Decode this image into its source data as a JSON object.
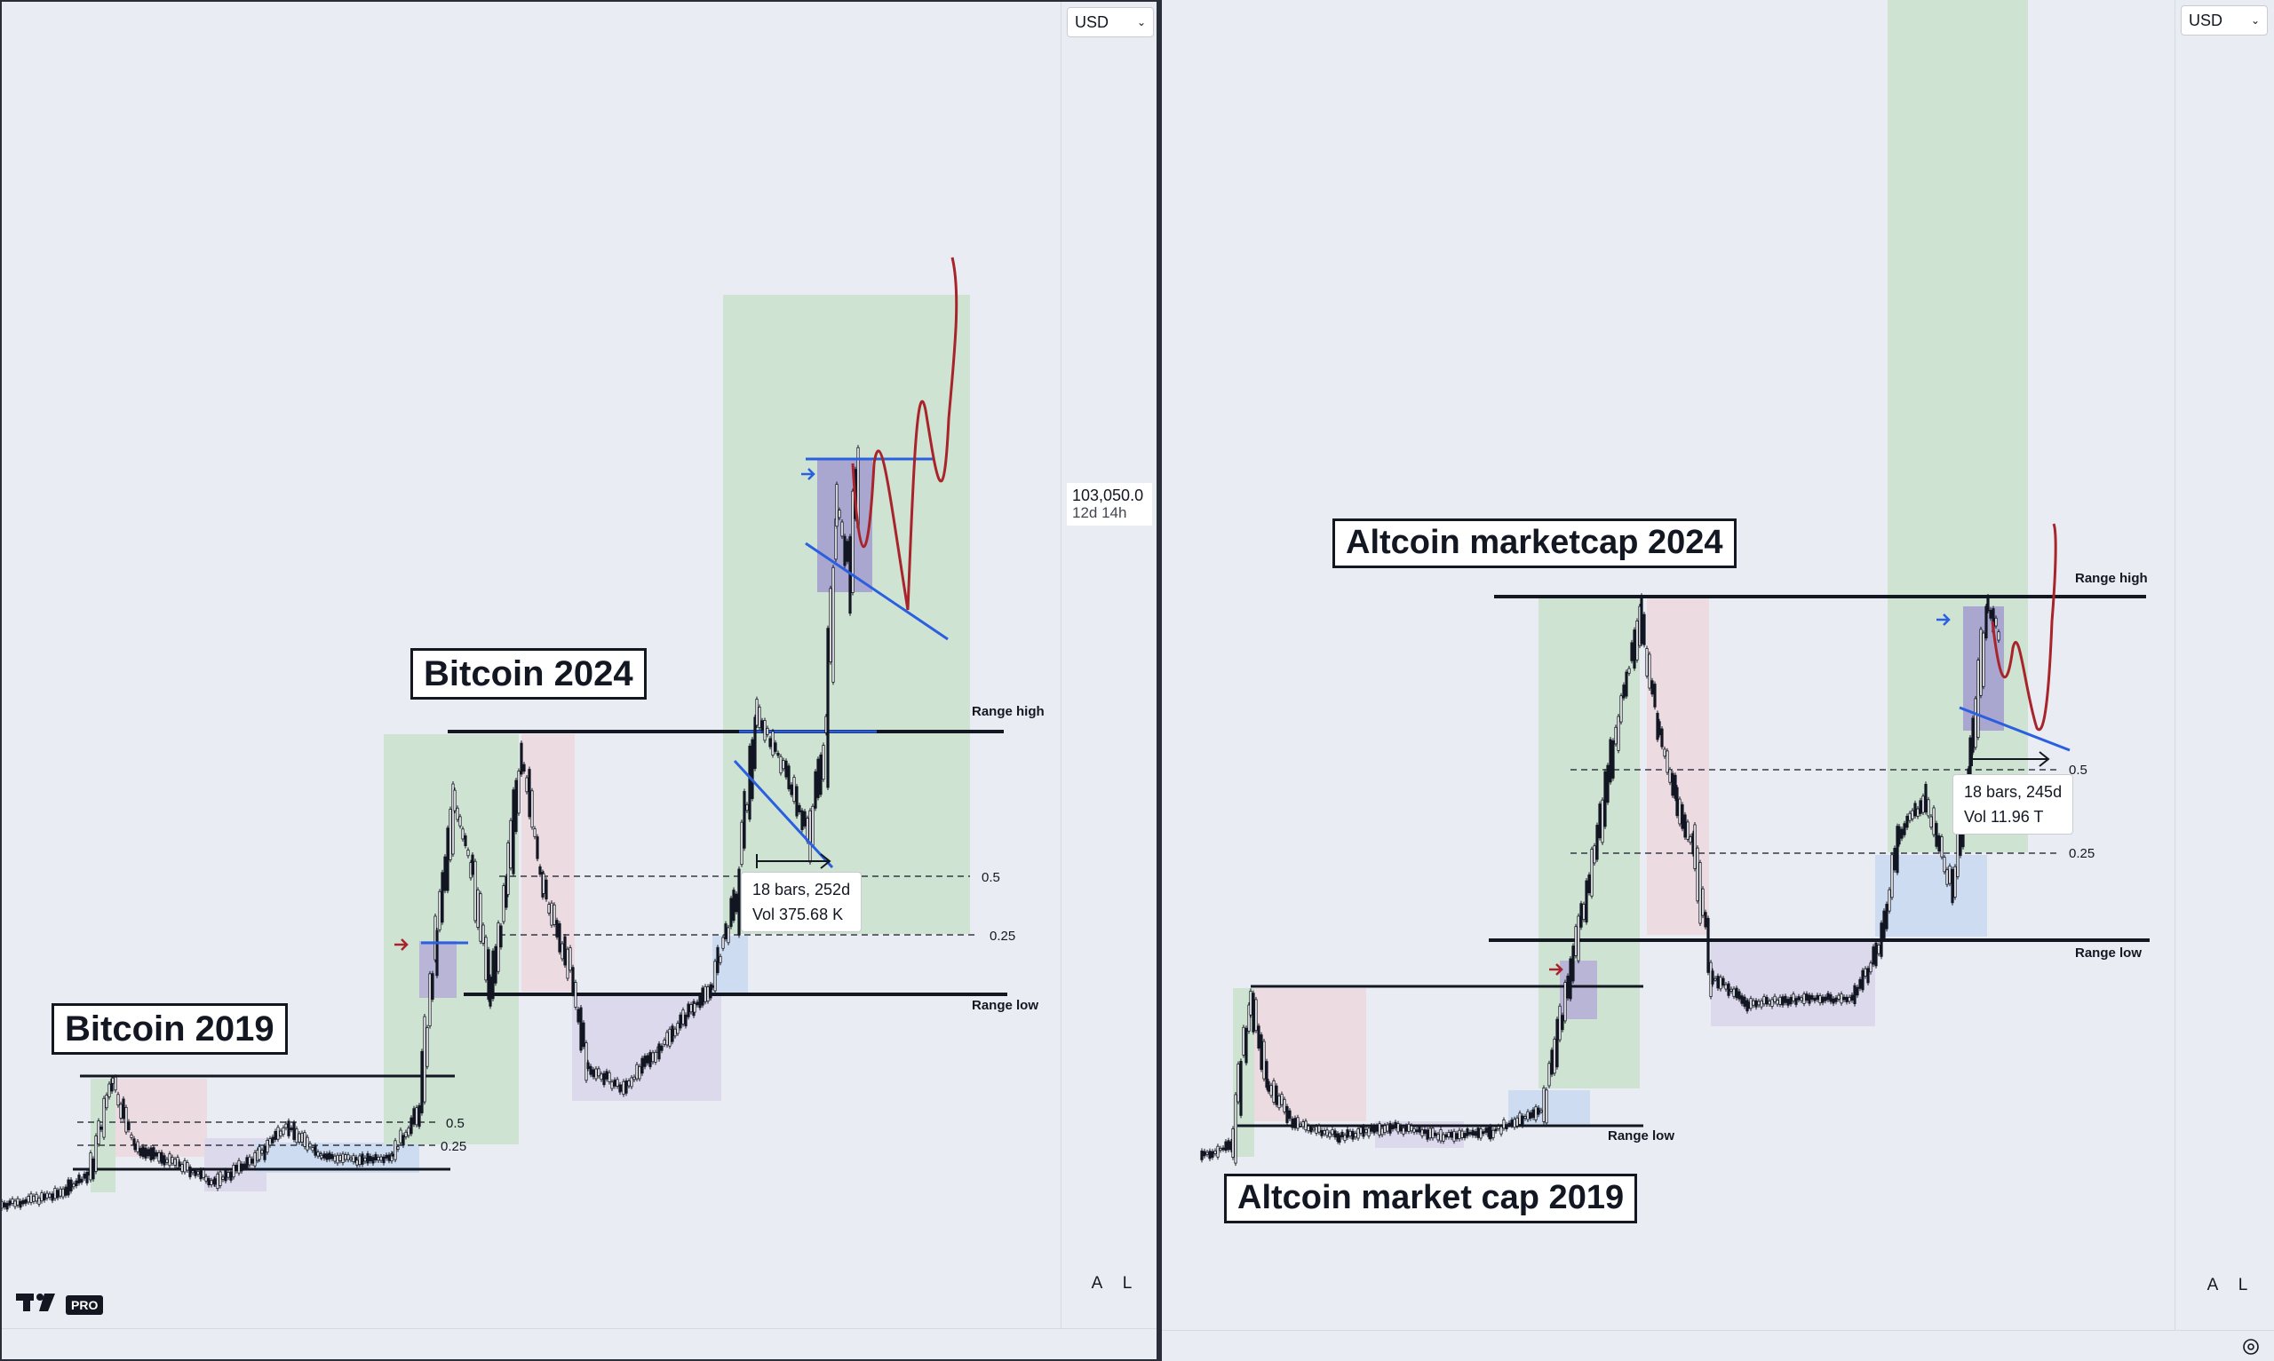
{
  "left_chart": {
    "title_2019": "Bitcoin 2019",
    "title_2024": "Bitcoin 2024",
    "currency": "USD",
    "price_label": "103,050.0",
    "countdown": "12d 14h",
    "range_high": "Range high",
    "range_low": "Range low",
    "fib_half": "0.5",
    "fib_quarter": "0.25",
    "fib_half_2019": "0.5",
    "fib_quarter_2019": "0.25",
    "measure_bars": "18 bars, 252d",
    "measure_vol": "Vol 375.68 K",
    "axis_auto": "A",
    "axis_log": "L",
    "logo_icon": "tradingview-logo-icon",
    "logo_badge": "PRO"
  },
  "right_chart": {
    "title_2024": "Altcoin marketcap 2024",
    "title_2019": "Altcoin market cap 2019",
    "currency": "USD",
    "range_high": "Range high",
    "range_low": "Range low",
    "range_low_2019": "Range low",
    "fib_half": "0.5",
    "fib_quarter": "0.25",
    "measure_bars": "18 bars, 245d",
    "measure_vol": "Vol 11.96 T",
    "axis_auto": "A",
    "axis_log": "L",
    "settings_icon": "gear-icon"
  },
  "colors": {
    "background": "#e9edf3",
    "zone_green": "#cfe3d2",
    "zone_red": "#ecdbe0",
    "zone_purple": "#ddd9ec",
    "zone_blue": "#cddcf0",
    "trendline_blue": "#2a5fe0",
    "projection_red": "#a8232a",
    "candle": "#131722"
  }
}
